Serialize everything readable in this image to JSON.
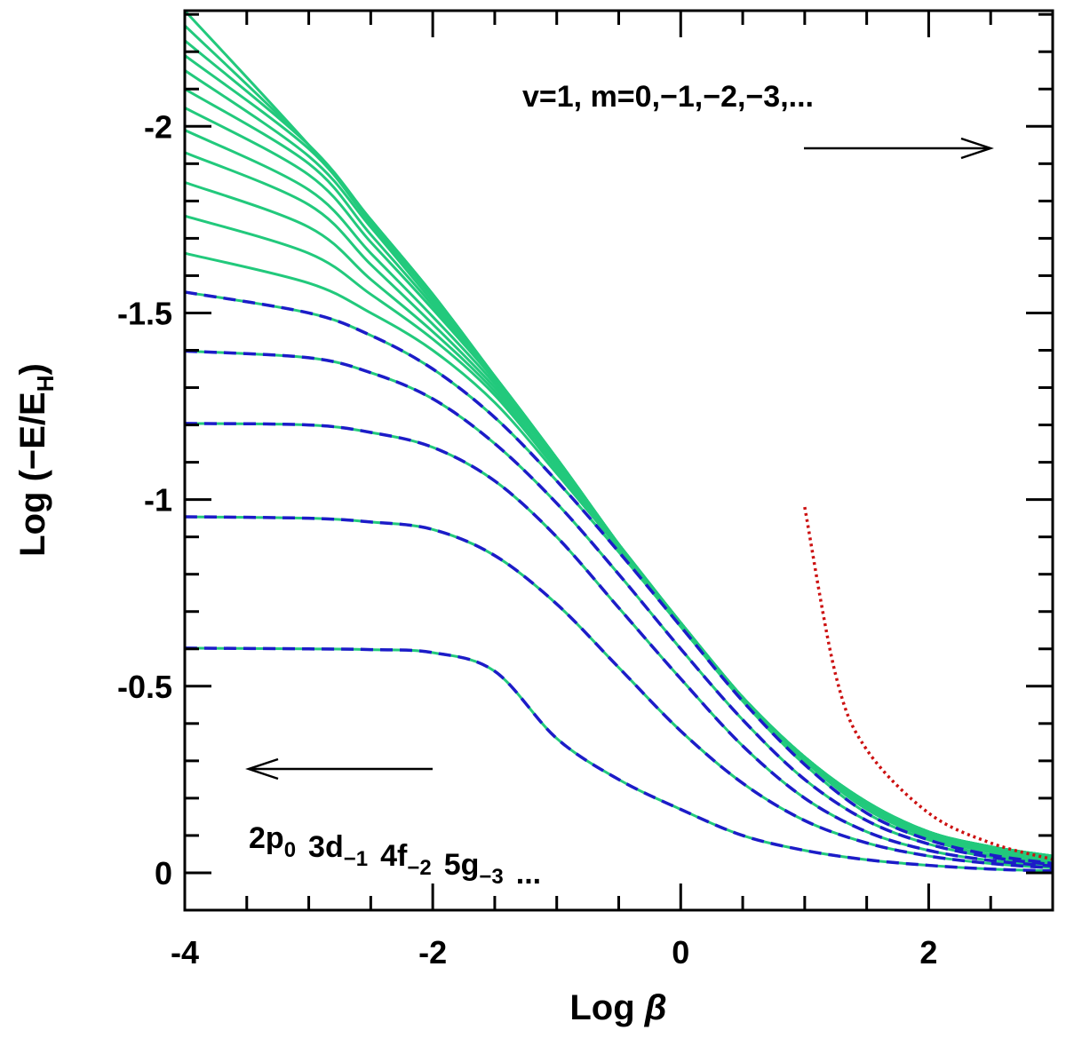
{
  "chart_data": {
    "type": "line",
    "xlabel": {
      "text": "Log ",
      "symbol": "β"
    },
    "ylabel": {
      "text": "Log (−E/E",
      "sub": "H",
      "end": ")"
    },
    "annotations": {
      "top": "v=1,  m=0,−1,−2,−3,...",
      "bottom": [
        {
          "text": "2p",
          "sub": "0"
        },
        {
          "text": "3d",
          "sub": "−1"
        },
        {
          "text": "4f",
          "sub": "−2"
        },
        {
          "text": "5g",
          "sub": "−3"
        },
        {
          "text": "..."
        }
      ]
    },
    "xlim": [
      -4,
      3
    ],
    "ylim": [
      0.1,
      -2.31
    ],
    "xticks": [
      -4,
      -2,
      0,
      2
    ],
    "yticks": [
      -2,
      -1.5,
      -1,
      -0.5,
      0
    ],
    "xminor": [
      -3.5,
      -3,
      -2.5,
      -1.5,
      -1,
      -0.5,
      0.5,
      1,
      1.5,
      2.5
    ],
    "yminor": [
      -2.3,
      -2.2,
      -2.1,
      -1.9,
      -1.8,
      -1.7,
      -1.6,
      -1.4,
      -1.3,
      -1.2,
      -1.1,
      -0.9,
      -0.8,
      -0.7,
      -0.6,
      -0.4,
      -0.3,
      -0.2,
      -0.1
    ],
    "x": [
      -4,
      -3,
      -2.5,
      -2,
      -1.5,
      -1,
      -0.5,
      0,
      0.5,
      1,
      1.5,
      2,
      2.5,
      3
    ],
    "series": [
      {
        "color": "#22c97c",
        "style": "solid",
        "values": [
          -0.602,
          -0.6,
          -0.598,
          -0.59,
          -0.54,
          -0.36,
          -0.25,
          -0.17,
          -0.1,
          -0.06,
          -0.035,
          -0.02,
          -0.01,
          -0.005
        ]
      },
      {
        "color": "#22c97c",
        "style": "solid",
        "values": [
          -0.954,
          -0.95,
          -0.94,
          -0.92,
          -0.85,
          -0.72,
          -0.55,
          -0.38,
          -0.24,
          -0.14,
          -0.08,
          -0.045,
          -0.025,
          -0.013
        ]
      },
      {
        "color": "#22c97c",
        "style": "solid",
        "values": [
          -1.204,
          -1.2,
          -1.18,
          -1.14,
          -1.05,
          -0.9,
          -0.71,
          -0.52,
          -0.34,
          -0.2,
          -0.11,
          -0.06,
          -0.033,
          -0.018
        ]
      },
      {
        "color": "#22c97c",
        "style": "solid",
        "values": [
          -1.398,
          -1.38,
          -1.34,
          -1.27,
          -1.15,
          -0.99,
          -0.8,
          -0.6,
          -0.41,
          -0.25,
          -0.14,
          -0.077,
          -0.042,
          -0.022
        ]
      },
      {
        "color": "#22c97c",
        "style": "solid",
        "values": [
          -1.556,
          -1.5,
          -1.44,
          -1.35,
          -1.22,
          -1.05,
          -0.86,
          -0.66,
          -0.46,
          -0.29,
          -0.16,
          -0.088,
          -0.048,
          -0.025
        ]
      },
      {
        "color": "#22c97c",
        "style": "solid",
        "values": [
          -1.66,
          -1.58,
          -1.5,
          -1.4,
          -1.26,
          -1.07,
          -0.87,
          -0.67,
          -0.47,
          -0.3,
          -0.17,
          -0.095,
          -0.055,
          -0.03
        ]
      },
      {
        "color": "#22c97c",
        "style": "solid",
        "values": [
          -1.76,
          -1.66,
          -1.55,
          -1.43,
          -1.28,
          -1.08,
          -0.88,
          -0.67,
          -0.47,
          -0.3,
          -0.175,
          -0.098,
          -0.058,
          -0.033
        ]
      },
      {
        "color": "#22c97c",
        "style": "solid",
        "values": [
          -1.85,
          -1.73,
          -1.59,
          -1.45,
          -1.29,
          -1.09,
          -0.88,
          -0.67,
          -0.47,
          -0.305,
          -0.18,
          -0.1,
          -0.061,
          -0.036
        ]
      },
      {
        "color": "#22c97c",
        "style": "solid",
        "values": [
          -1.93,
          -1.79,
          -1.63,
          -1.47,
          -1.3,
          -1.1,
          -0.88,
          -0.67,
          -0.47,
          -0.305,
          -0.183,
          -0.103,
          -0.063,
          -0.038
        ]
      },
      {
        "color": "#22c97c",
        "style": "solid",
        "values": [
          -1.99,
          -1.83,
          -1.66,
          -1.49,
          -1.31,
          -1.1,
          -0.88,
          -0.67,
          -0.47,
          -0.31,
          -0.185,
          -0.105,
          -0.065,
          -0.04
        ]
      },
      {
        "color": "#22c97c",
        "style": "solid",
        "values": [
          -2.05,
          -1.87,
          -1.69,
          -1.51,
          -1.32,
          -1.11,
          -0.88,
          -0.67,
          -0.47,
          -0.31,
          -0.187,
          -0.107,
          -0.067,
          -0.042
        ]
      },
      {
        "color": "#22c97c",
        "style": "solid",
        "values": [
          -2.1,
          -1.9,
          -1.71,
          -1.52,
          -1.32,
          -1.11,
          -0.88,
          -0.665,
          -0.47,
          -0.31,
          -0.188,
          -0.108,
          -0.068,
          -0.043
        ]
      },
      {
        "color": "#22c97c",
        "style": "solid",
        "values": [
          -2.15,
          -1.92,
          -1.73,
          -1.53,
          -1.33,
          -1.11,
          -0.88,
          -0.665,
          -0.47,
          -0.31,
          -0.189,
          -0.109,
          -0.069,
          -0.044
        ]
      },
      {
        "color": "#22c97c",
        "style": "solid",
        "values": [
          -2.19,
          -1.94,
          -1.74,
          -1.54,
          -1.33,
          -1.11,
          -0.88,
          -0.66,
          -0.47,
          -0.31,
          -0.19,
          -0.11,
          -0.07,
          -0.045
        ]
      },
      {
        "color": "#22c97c",
        "style": "solid",
        "values": [
          -2.23,
          -1.95,
          -1.75,
          -1.55,
          -1.33,
          -1.11,
          -0.88,
          -0.66,
          -0.47,
          -0.31,
          -0.19,
          -0.11,
          -0.07,
          -0.045
        ]
      },
      {
        "color": "#22c97c",
        "style": "solid",
        "values": [
          -2.27,
          -1.95,
          -1.75,
          -1.55,
          -1.33,
          -1.11,
          -0.88,
          -0.66,
          -0.47,
          -0.31,
          -0.19,
          -0.11,
          -0.07,
          -0.045
        ]
      },
      {
        "color": "#22c97c",
        "style": "solid",
        "values": [
          -2.31,
          -1.95,
          -1.75,
          -1.55,
          -1.33,
          -1.11,
          -0.88,
          -0.66,
          -0.47,
          -0.31,
          -0.19,
          -0.11,
          -0.07,
          -0.045
        ]
      },
      {
        "color": "#1c1cc8",
        "style": "dashed",
        "values": [
          -0.602,
          -0.6,
          -0.598,
          -0.59,
          -0.54,
          -0.36,
          -0.25,
          -0.17,
          -0.1,
          -0.06,
          -0.035,
          -0.02,
          -0.01,
          -0.005
        ]
      },
      {
        "color": "#1c1cc8",
        "style": "dashed",
        "values": [
          -0.954,
          -0.95,
          -0.94,
          -0.92,
          -0.85,
          -0.72,
          -0.55,
          -0.38,
          -0.24,
          -0.14,
          -0.08,
          -0.045,
          -0.025,
          -0.013
        ]
      },
      {
        "color": "#1c1cc8",
        "style": "dashed",
        "values": [
          -1.204,
          -1.2,
          -1.18,
          -1.14,
          -1.05,
          -0.9,
          -0.71,
          -0.52,
          -0.34,
          -0.2,
          -0.11,
          -0.06,
          -0.033,
          -0.018
        ]
      },
      {
        "color": "#1c1cc8",
        "style": "dashed",
        "values": [
          -1.398,
          -1.38,
          -1.34,
          -1.27,
          -1.15,
          -0.99,
          -0.8,
          -0.6,
          -0.41,
          -0.25,
          -0.14,
          -0.077,
          -0.042,
          -0.022
        ]
      },
      {
        "color": "#1c1cc8",
        "style": "dashed",
        "values": [
          -1.556,
          -1.5,
          -1.44,
          -1.35,
          -1.22,
          -1.05,
          -0.86,
          -0.66,
          -0.46,
          -0.29,
          -0.16,
          -0.088,
          -0.048,
          -0.025
        ]
      },
      {
        "color": "#cc1111",
        "style": "dotted",
        "x": [
          1,
          1.25,
          1.5,
          2,
          2.5,
          3
        ],
        "values": [
          -0.98,
          -0.53,
          -0.33,
          -0.16,
          -0.08,
          -0.036
        ]
      }
    ]
  }
}
